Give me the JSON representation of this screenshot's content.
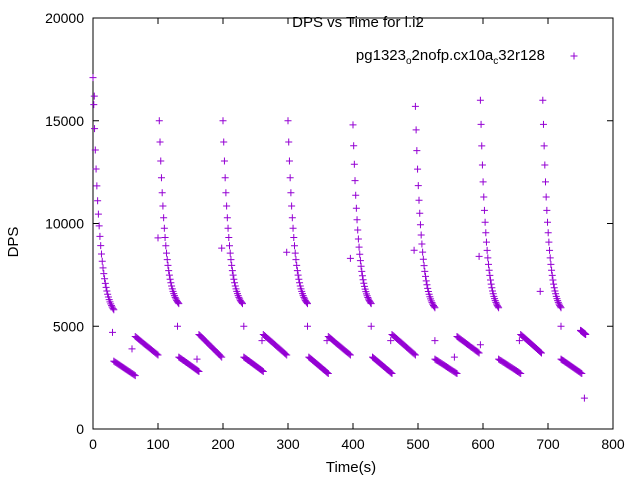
{
  "chart_data": {
    "type": "scatter",
    "title": "DPS vs Time for l.i2",
    "xlabel": "Time(s)",
    "ylabel": "DPS",
    "xlim": [
      0,
      800
    ],
    "ylim": [
      0,
      20000
    ],
    "xticks": [
      0,
      100,
      200,
      300,
      400,
      500,
      600,
      700,
      800
    ],
    "yticks": [
      0,
      5000,
      10000,
      15000,
      20000
    ],
    "grid": false,
    "legend_position": "top-right",
    "marker": "+",
    "color": "#9400d3",
    "series": [
      {
        "name": "pg1323_o2nofp.cx10a_c32r128",
        "legend_parts": {
          "base": "pg1323",
          "sub1": "o",
          "mid": "2nofp.cx10a",
          "sub2": "c",
          "end": "32r128"
        },
        "segments": [
          {
            "kind": "decay",
            "x": [
              0,
              32
            ],
            "y": [
              17100,
              5800
            ]
          },
          {
            "kind": "isolated",
            "x": [
              2
            ],
            "y": [
              16200
            ]
          },
          {
            "kind": "isolated",
            "x": [
              30
            ],
            "y": [
              4700
            ]
          },
          {
            "kind": "low",
            "x": [
              32,
              65
            ],
            "y": [
              3300,
              2600
            ]
          },
          {
            "kind": "isolated",
            "x": [
              60
            ],
            "y": [
              3900
            ]
          },
          {
            "kind": "high",
            "x": [
              65,
              100
            ],
            "y": [
              4500,
              3600
            ]
          },
          {
            "kind": "isolated",
            "x": [
              100
            ],
            "y": [
              9300
            ]
          },
          {
            "kind": "decay",
            "x": [
              102,
              132
            ],
            "y": [
              15000,
              6100
            ]
          },
          {
            "kind": "isolated",
            "x": [
              130
            ],
            "y": [
              5000
            ]
          },
          {
            "kind": "low",
            "x": [
              132,
              163
            ],
            "y": [
              3500,
              2800
            ]
          },
          {
            "kind": "isolated",
            "x": [
              160
            ],
            "y": [
              3400
            ]
          },
          {
            "kind": "high",
            "x": [
              163,
              198
            ],
            "y": [
              4600,
              3500
            ]
          },
          {
            "kind": "isolated",
            "x": [
              198
            ],
            "y": [
              8800
            ]
          },
          {
            "kind": "decay",
            "x": [
              200,
              230
            ],
            "y": [
              15000,
              6100
            ]
          },
          {
            "kind": "isolated",
            "x": [
              232
            ],
            "y": [
              5000
            ]
          },
          {
            "kind": "low",
            "x": [
              232,
              262
            ],
            "y": [
              3500,
              2800
            ]
          },
          {
            "kind": "isolated",
            "x": [
              260
            ],
            "y": [
              4300
            ]
          },
          {
            "kind": "high",
            "x": [
              262,
              298
            ],
            "y": [
              4600,
              3600
            ]
          },
          {
            "kind": "isolated",
            "x": [
              298
            ],
            "y": [
              8600
            ]
          },
          {
            "kind": "decay",
            "x": [
              300,
              330
            ],
            "y": [
              15000,
              6100
            ]
          },
          {
            "kind": "isolated",
            "x": [
              330
            ],
            "y": [
              5000
            ]
          },
          {
            "kind": "low",
            "x": [
              332,
              362
            ],
            "y": [
              3500,
              2700
            ]
          },
          {
            "kind": "isolated",
            "x": [
              360
            ],
            "y": [
              4300
            ]
          },
          {
            "kind": "high",
            "x": [
              362,
              396
            ],
            "y": [
              4500,
              3600
            ]
          },
          {
            "kind": "isolated",
            "x": [
              396
            ],
            "y": [
              8300
            ]
          },
          {
            "kind": "decay",
            "x": [
              400,
              428
            ],
            "y": [
              14800,
              6100
            ]
          },
          {
            "kind": "isolated",
            "x": [
              428
            ],
            "y": [
              5000
            ]
          },
          {
            "kind": "low",
            "x": [
              430,
              460
            ],
            "y": [
              3500,
              2700
            ]
          },
          {
            "kind": "isolated",
            "x": [
              458
            ],
            "y": [
              4300
            ]
          },
          {
            "kind": "high",
            "x": [
              460,
              496
            ],
            "y": [
              4600,
              3600
            ]
          },
          {
            "kind": "isolated",
            "x": [
              494
            ],
            "y": [
              8700
            ]
          },
          {
            "kind": "decay",
            "x": [
              496,
              526
            ],
            "y": [
              15700,
              5900
            ]
          },
          {
            "kind": "isolated",
            "x": [
              526
            ],
            "y": [
              4300
            ]
          },
          {
            "kind": "low",
            "x": [
              526,
              560
            ],
            "y": [
              3400,
              2700
            ]
          },
          {
            "kind": "isolated",
            "x": [
              556
            ],
            "y": [
              3500
            ]
          },
          {
            "kind": "high",
            "x": [
              560,
              594
            ],
            "y": [
              4500,
              3700
            ]
          },
          {
            "kind": "isolated",
            "x": [
              594
            ],
            "y": [
              8400
            ]
          },
          {
            "kind": "decay",
            "x": [
              596,
              624
            ],
            "y": [
              16000,
              5900
            ]
          },
          {
            "kind": "isolated",
            "x": [
              596
            ],
            "y": [
              4100
            ]
          },
          {
            "kind": "low",
            "x": [
              624,
              658
            ],
            "y": [
              3400,
              2700
            ]
          },
          {
            "kind": "isolated",
            "x": [
              656
            ],
            "y": [
              4300
            ]
          },
          {
            "kind": "high",
            "x": [
              658,
              690
            ],
            "y": [
              4600,
              3700
            ]
          },
          {
            "kind": "isolated",
            "x": [
              688
            ],
            "y": [
              6700
            ]
          },
          {
            "kind": "decay",
            "x": [
              692,
              720
            ],
            "y": [
              16000,
              5900
            ]
          },
          {
            "kind": "isolated",
            "x": [
              720
            ],
            "y": [
              5000
            ]
          },
          {
            "kind": "low",
            "x": [
              720,
              752
            ],
            "y": [
              3400,
              2700
            ]
          },
          {
            "kind": "high",
            "x": [
              750,
              758
            ],
            "y": [
              4800,
              4600
            ]
          },
          {
            "kind": "isolated",
            "x": [
              756
            ],
            "y": [
              1500
            ]
          }
        ]
      }
    ]
  }
}
